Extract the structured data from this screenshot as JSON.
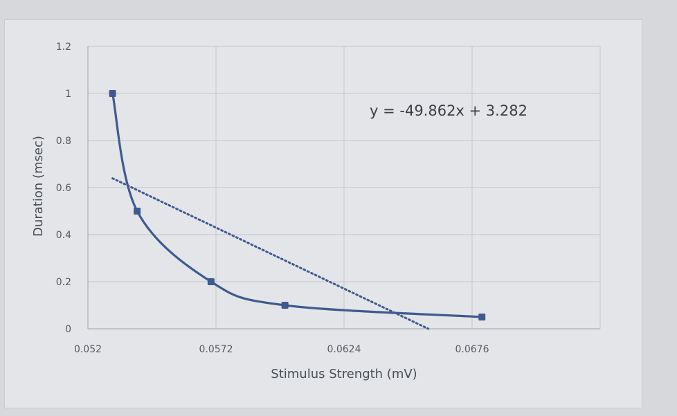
{
  "chart_data": {
    "type": "scatter",
    "xlabel": "Stimulus Strength (mV)",
    "ylabel": "Duration (msec)",
    "x_ticks": [
      "0.052",
      "0.0572",
      "0.0624",
      "0.0676"
    ],
    "y_ticks": [
      "0",
      "0.2",
      "0.4",
      "0.6",
      "0.8",
      "1",
      "1.2"
    ],
    "xlim": [
      0.052,
      0.0728
    ],
    "ylim": [
      0,
      1.2
    ],
    "grid": true,
    "series": [
      {
        "x": [
          0.053,
          0.054,
          0.057,
          0.06,
          0.068
        ],
        "y": [
          1.0,
          0.5,
          0.2,
          0.1,
          0.05
        ],
        "style": "smoothed line with markers",
        "color": "#3f5a8f"
      }
    ],
    "trendline": {
      "type": "linear",
      "slope": -49.862,
      "intercept": 3.282,
      "style": "dotted",
      "color": "#3f5a8f",
      "equation": "y = -49.862x + 3.282"
    }
  }
}
